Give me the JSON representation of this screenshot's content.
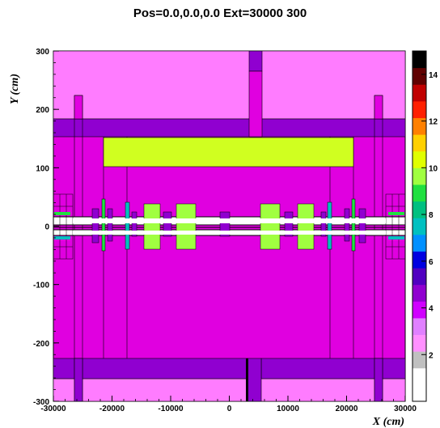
{
  "title": "Pos=0.0,0.0,0.0 Ext=30000 300",
  "chart_data": {
    "type": "heatmap",
    "xlabel": "X (cm)",
    "ylabel": "Y (cm)",
    "xlim": [
      -30000,
      30000
    ],
    "ylim": [
      -300,
      300
    ],
    "xticks": [
      "-30000",
      "-20000",
      "-10000",
      "0",
      "10000",
      "20000",
      "30000"
    ],
    "yticks": [
      "300",
      "200",
      "100",
      "0",
      "-100",
      "-200",
      "-300"
    ],
    "colorbar": {
      "range": [
        0,
        15
      ],
      "ticks": [
        "2",
        "4",
        "6",
        "8",
        "10",
        "12",
        "14"
      ],
      "colors": [
        "#ffffff",
        "#ffffff",
        "#c0c0c0",
        "#ff90ff",
        "#e080ff",
        "#d000ff",
        "#9000d0",
        "#5000c0",
        "#0000e0",
        "#0090ff",
        "#00c0c0",
        "#00c080",
        "#20e040",
        "#a0ff40",
        "#e0ff00",
        "#ffd000",
        "#ff8000",
        "#ff2000",
        "#c00000",
        "#600000",
        "#000000"
      ]
    },
    "legend": "right",
    "grid": false
  }
}
